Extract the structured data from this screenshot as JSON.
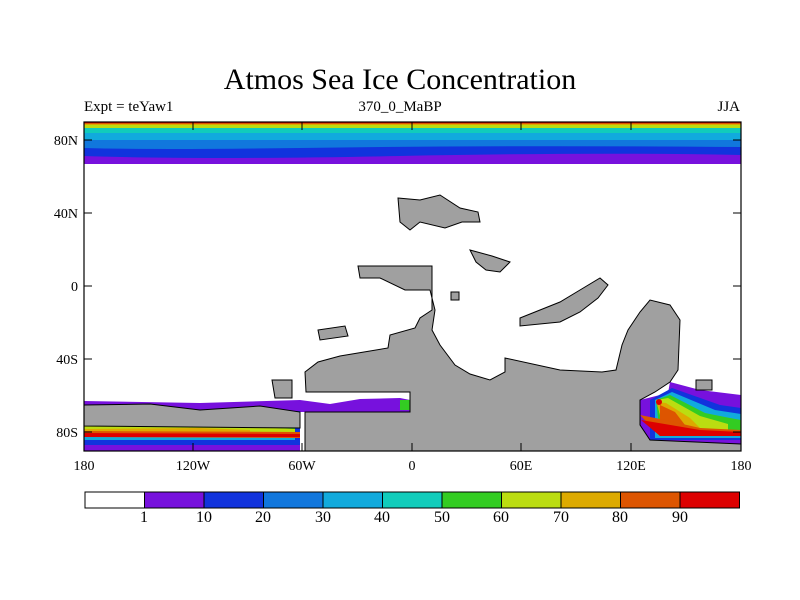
{
  "title": "Atmos Sea Ice Concentration",
  "left_label": "Expt = teYaw1",
  "center_label": "370_0_MaBP",
  "right_label": "JJA",
  "y_ticks": [
    "80N",
    "40N",
    "0",
    "40S",
    "80S"
  ],
  "x_ticks": [
    "180",
    "120W",
    "60W",
    "0",
    "60E",
    "120E",
    "180"
  ],
  "colorbar": {
    "labels": [
      "1",
      "10",
      "20",
      "30",
      "40",
      "50",
      "60",
      "70",
      "80",
      "90"
    ],
    "colors": [
      "#ffffff",
      "#7711dd",
      "#1133dd",
      "#1177dd",
      "#11aadd",
      "#11ccbb",
      "#33cc22",
      "#bbdd11",
      "#ddaa00",
      "#dd5500",
      "#dd0000"
    ]
  },
  "colors": {
    "land": "#a0a0a0"
  }
}
